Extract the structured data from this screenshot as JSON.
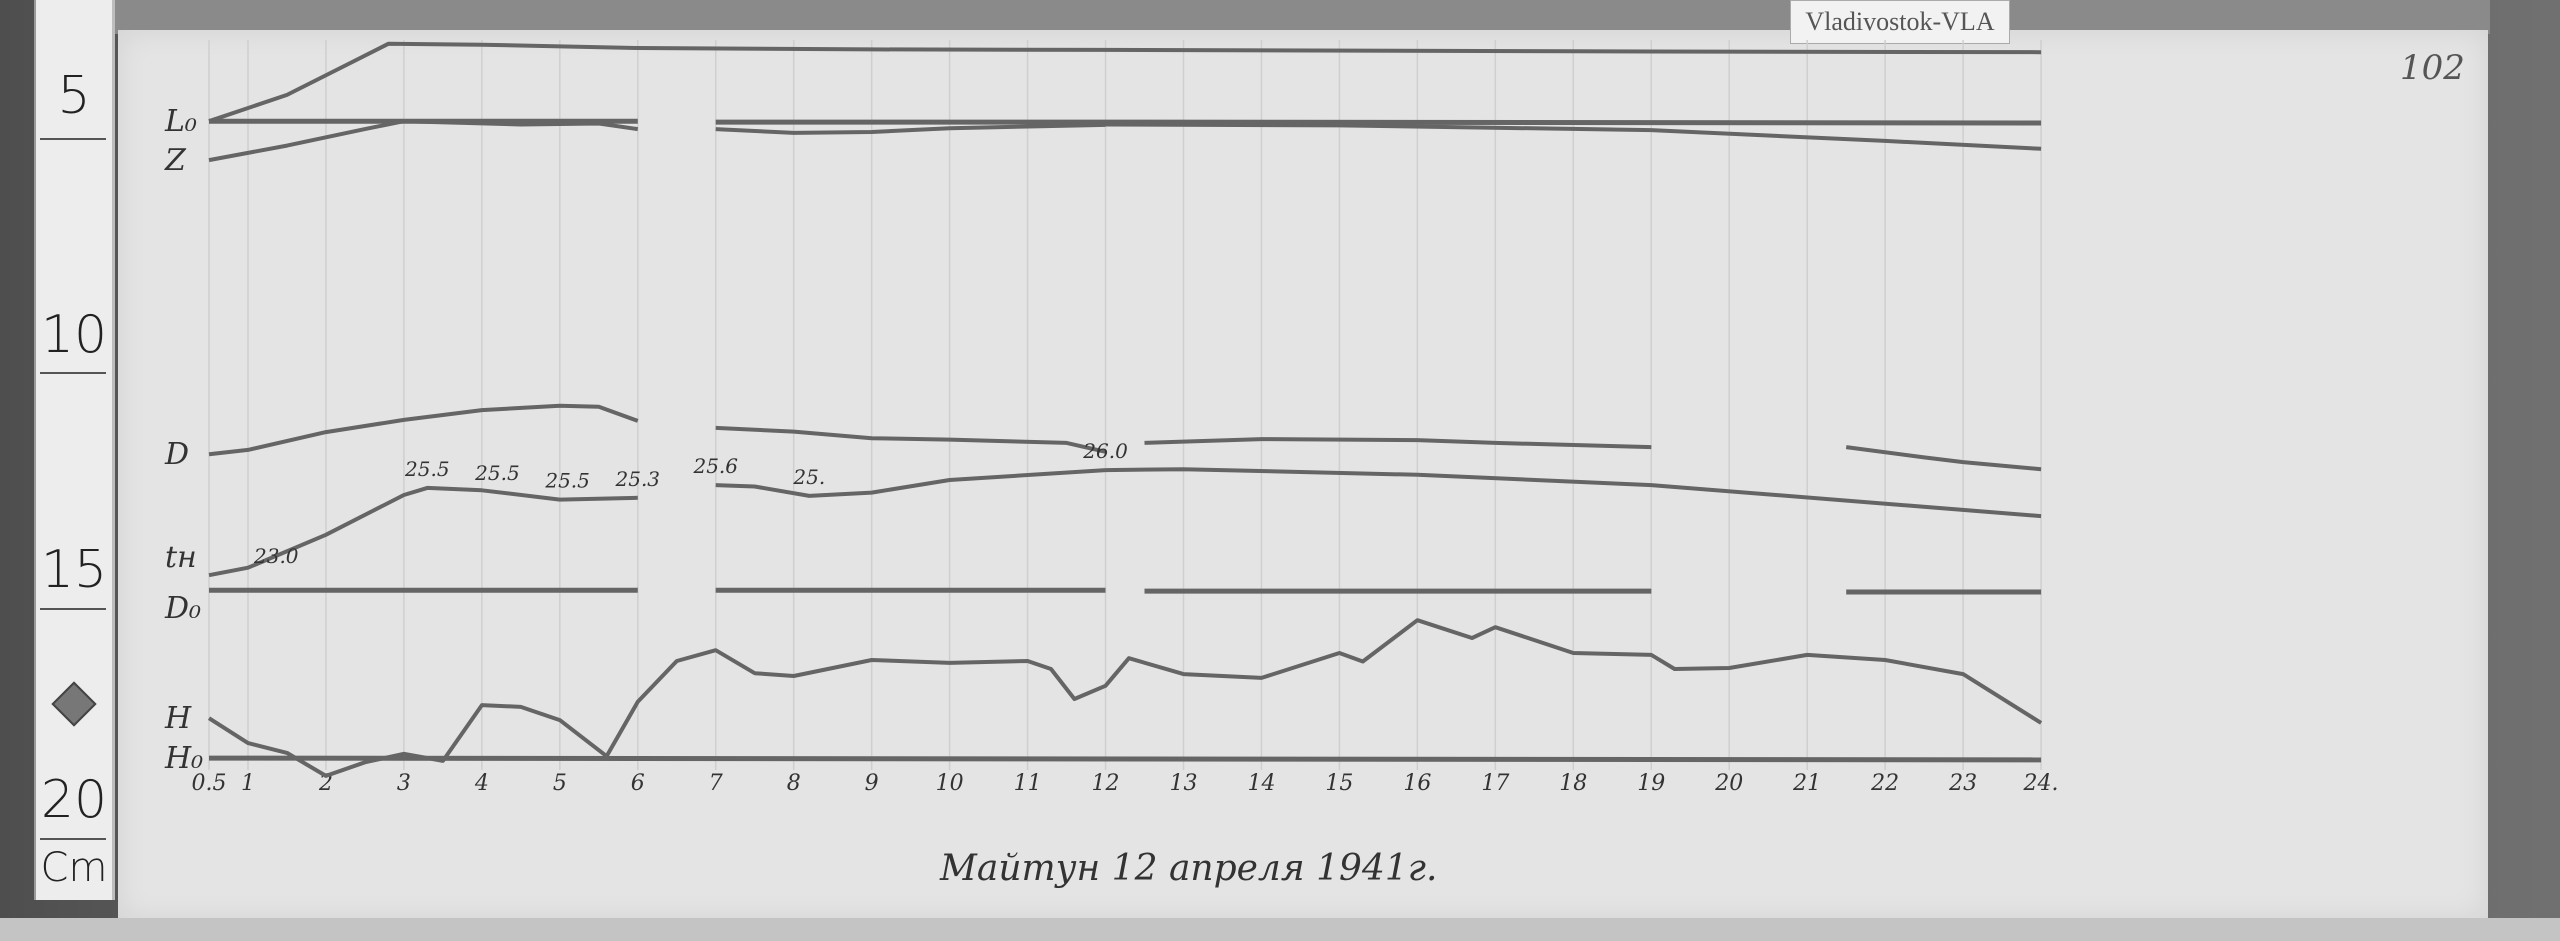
{
  "label_tag": "Vladivostok-VLA",
  "page_number": "102",
  "caption": "Майтун 12 апреля 1941г.",
  "ruler": {
    "unit": "Cm",
    "marks": [
      "5",
      "10",
      "15",
      "20"
    ]
  },
  "colors": {
    "trace": "#656565",
    "paper": "#e4e4e4",
    "ink": "#333333"
  },
  "chart_data": {
    "type": "line",
    "title": "",
    "xlabel": "",
    "ylabel": "Cm",
    "xlim": [
      0.5,
      24
    ],
    "ylim": [
      3,
      21
    ],
    "y_inverted": true,
    "grid": "vertical hour lines",
    "x_ticks": [
      "0.5",
      "1",
      "2",
      "3",
      "4",
      "5",
      "6",
      "7",
      "8",
      "9",
      "10",
      "11",
      "12",
      "13",
      "14",
      "15",
      "16",
      "17",
      "18",
      "19",
      "20",
      "21",
      "22",
      "23",
      "24."
    ],
    "x_tick_values": [
      0.5,
      1,
      2,
      3,
      4,
      5,
      6,
      7,
      8,
      9,
      10,
      11,
      12,
      13,
      14,
      15,
      16,
      17,
      18,
      19,
      20,
      21,
      22,
      23,
      24
    ],
    "series": [
      {
        "name": "L₀",
        "segments": [
          {
            "x": [
              0.5,
              6
            ],
            "y": [
              5.43,
              5.43
            ]
          },
          {
            "x": [
              7,
              12
            ],
            "y": [
              5.45,
              5.45
            ]
          },
          {
            "x": [
              12,
              24
            ],
            "y": [
              5.45,
              5.47
            ]
          }
        ]
      },
      {
        "name": "",
        "segments": [
          {
            "x": [
              0.5,
              1.5,
              2.3,
              2.8,
              4,
              6,
              9,
              12,
              18,
              24
            ],
            "y": [
              5.43,
              4.87,
              4.2,
              3.78,
              3.8,
              3.87,
              3.9,
              3.91,
              3.94,
              3.96
            ]
          }
        ]
      },
      {
        "name": "Z",
        "segments": [
          {
            "x": [
              0.5,
              1.5,
              2.5,
              3,
              4.5,
              5.5,
              6
            ],
            "y": [
              6.26,
              5.95,
              5.6,
              5.43,
              5.5,
              5.48,
              5.6
            ]
          },
          {
            "x": [
              7,
              8,
              9,
              10,
              12
            ],
            "y": [
              5.6,
              5.68,
              5.66,
              5.58,
              5.51
            ]
          },
          {
            "x": [
              12,
              15,
              19,
              22,
              24
            ],
            "y": [
              5.5,
              5.52,
              5.62,
              5.85,
              6.02
            ]
          }
        ]
      },
      {
        "name": "D",
        "segments": [
          {
            "x": [
              0.5,
              1,
              2,
              3,
              4,
              5,
              5.5,
              6
            ],
            "y": [
              12.53,
              12.44,
              12.06,
              11.8,
              11.59,
              11.5,
              11.52,
              11.82
            ]
          },
          {
            "x": [
              7,
              8,
              9,
              10,
              11.5,
              12
            ],
            "y": [
              11.97,
              12.05,
              12.19,
              12.22,
              12.29,
              12.48
            ]
          },
          {
            "x": [
              12.5,
              14,
              16,
              17,
              19
            ],
            "y": [
              12.29,
              12.21,
              12.23,
              12.29,
              12.38
            ]
          },
          {
            "x": [
              21.5,
              22.5,
              23,
              24
            ],
            "y": [
              12.38,
              12.6,
              12.7,
              12.85
            ]
          }
        ]
      },
      {
        "name": "tн",
        "segments": [
          {
            "x": [
              0.5,
              1,
              2,
              3,
              3.3,
              4,
              5,
              6
            ],
            "y": [
              15.11,
              14.95,
              14.25,
              13.4,
              13.25,
              13.3,
              13.5,
              13.46
            ]
          },
          {
            "x": [
              7,
              7.5,
              8.2,
              9,
              10,
              12
            ],
            "y": [
              13.19,
              13.22,
              13.42,
              13.35,
              13.08,
              12.87
            ]
          },
          {
            "x": [
              12,
              13,
              16,
              19,
              24
            ],
            "y": [
              12.87,
              12.85,
              12.97,
              13.19,
              13.85
            ]
          }
        ]
      },
      {
        "name": "D₀",
        "segments": [
          {
            "x": [
              0.5,
              6
            ],
            "y": [
              15.43,
              15.43
            ]
          },
          {
            "x": [
              7,
              12
            ],
            "y": [
              15.43,
              15.43
            ]
          },
          {
            "x": [
              12.5,
              19
            ],
            "y": [
              15.45,
              15.45
            ]
          },
          {
            "x": [
              21.5,
              24
            ],
            "y": [
              15.47,
              15.47
            ]
          }
        ]
      },
      {
        "name": "H",
        "segments": [
          {
            "x": [
              0.5,
              1,
              1.5,
              2,
              2.5,
              3,
              3.5,
              4,
              4.5,
              5,
              5.6,
              6,
              6.5,
              7,
              7.5,
              8,
              9,
              10,
              11,
              11.3,
              11.6,
              12,
              12.3,
              13,
              14,
              15,
              15.3,
              16,
              16.7,
              17,
              18,
              19,
              19.3,
              20,
              21,
              22,
              23,
              24
            ],
            "y": [
              18.16,
              18.69,
              18.9,
              19.39,
              19.1,
              18.92,
              19.07,
              17.88,
              17.92,
              18.2,
              18.97,
              17.81,
              16.94,
              16.71,
              17.2,
              17.26,
              16.92,
              16.98,
              16.94,
              17.11,
              17.75,
              17.47,
              16.88,
              17.22,
              17.3,
              16.77,
              16.95,
              16.07,
              16.45,
              16.22,
              16.77,
              16.81,
              17.11,
              17.09,
              16.81,
              16.92,
              17.22,
              18.26
            ]
          }
        ]
      },
      {
        "name": "H₀",
        "segments": [
          {
            "x": [
              0.5,
              24
            ],
            "y": [
              19.01,
              19.05
            ]
          }
        ]
      }
    ],
    "annotations": [
      {
        "series": "tн",
        "x": 0.5,
        "text": "23.0"
      },
      {
        "series": "tн",
        "x": 3.3,
        "text": "25.5"
      },
      {
        "series": "tн",
        "x": 4.2,
        "text": "25.5"
      },
      {
        "series": "tн",
        "x": 5.1,
        "text": "25.5"
      },
      {
        "series": "tн",
        "x": 6.0,
        "text": "25.3"
      },
      {
        "series": "tн",
        "x": 7.0,
        "text": "25.6"
      },
      {
        "series": "tн",
        "x": 8.2,
        "text": "25."
      },
      {
        "series": "tн",
        "x": 12.0,
        "text": "26.0"
      }
    ]
  }
}
